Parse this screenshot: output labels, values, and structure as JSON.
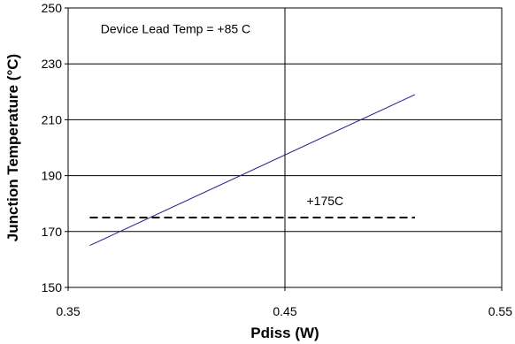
{
  "chart_data": {
    "type": "line",
    "xlabel": "Pdiss (W)",
    "ylabel": "Junction Temperature (°C)",
    "xlim": [
      0.35,
      0.55
    ],
    "ylim": [
      150,
      250
    ],
    "x_ticks": [
      0.35,
      0.45,
      0.55
    ],
    "x_tick_labels": [
      "0.35",
      "0.45",
      "0.55"
    ],
    "y_ticks": [
      150,
      170,
      190,
      210,
      230,
      250
    ],
    "y_tick_labels": [
      "150",
      "170",
      "190",
      "210",
      "230",
      "250"
    ],
    "grid": true,
    "legend": "none",
    "series": [
      {
        "style": "solid",
        "color": "#1f1f8c",
        "x": [
          0.36,
          0.51
        ],
        "y": [
          165,
          219
        ]
      },
      {
        "style": "dashed",
        "color": "#000000",
        "x": [
          0.36,
          0.51
        ],
        "y": [
          175,
          175
        ]
      }
    ],
    "annotations": [
      {
        "text": "Device Lead Temp = +85 C",
        "x": 0.365,
        "y": 241
      },
      {
        "text": "+175C",
        "x": 0.46,
        "y": 179.5
      }
    ]
  }
}
